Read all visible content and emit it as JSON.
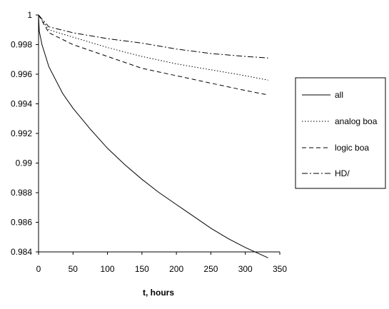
{
  "chart_data": {
    "type": "line",
    "xlabel": "t, hours",
    "ylabel": "",
    "title": "",
    "xlim": [
      0,
      350
    ],
    "ylim": [
      0.984,
      1
    ],
    "x_ticks": [
      0,
      50,
      100,
      150,
      200,
      250,
      300,
      350
    ],
    "y_ticks": [
      0.984,
      0.986,
      0.988,
      0.99,
      0.992,
      0.994,
      0.996,
      0.998,
      1
    ],
    "x_tick_labels": [
      "0",
      "50",
      "100",
      "150",
      "200",
      "250",
      "300",
      "350"
    ],
    "y_tick_labels": [
      "0.984",
      "0.986",
      "0.988",
      "0.99",
      "0.992",
      "0.994",
      "0.996",
      "0.998",
      "1"
    ],
    "grid": false,
    "legend_position": "right",
    "series": [
      {
        "name": "all",
        "style": "solid",
        "color": "#000000",
        "x": [
          0,
          1,
          5,
          15,
          35,
          50,
          75,
          100,
          125,
          150,
          175,
          200,
          225,
          250,
          275,
          300,
          333
        ],
        "y": [
          1,
          0.9989,
          0.998,
          0.9965,
          0.9947,
          0.9937,
          0.9923,
          0.991,
          0.9899,
          0.9889,
          0.988,
          0.9872,
          0.9864,
          0.9856,
          0.9849,
          0.9843,
          0.9836
        ]
      },
      {
        "name": "analog boa",
        "style": "dotted",
        "color": "#000000",
        "x": [
          0,
          15,
          50,
          100,
          150,
          200,
          250,
          300,
          333
        ],
        "y": [
          1,
          0.999,
          0.9985,
          0.9978,
          0.9972,
          0.9967,
          0.9963,
          0.9959,
          0.9956
        ]
      },
      {
        "name": "logic boa",
        "style": "dashed",
        "color": "#000000",
        "x": [
          0,
          15,
          50,
          100,
          150,
          200,
          250,
          300,
          333
        ],
        "y": [
          1,
          0.9988,
          0.998,
          0.9972,
          0.9964,
          0.9959,
          0.9954,
          0.9949,
          0.9946
        ]
      },
      {
        "name": "HD/",
        "style": "dash-dot",
        "color": "#000000",
        "x": [
          0,
          15,
          50,
          100,
          150,
          200,
          250,
          300,
          333
        ],
        "y": [
          1,
          0.9992,
          0.9988,
          0.9984,
          0.9981,
          0.9977,
          0.9974,
          0.9972,
          0.9971
        ]
      }
    ]
  }
}
